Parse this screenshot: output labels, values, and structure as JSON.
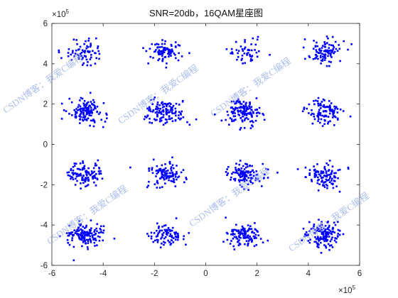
{
  "chart_data": {
    "type": "scatter",
    "title": "SNR=20db，16QAM星座图",
    "xlabel": "",
    "ylabel": "",
    "xlim": [
      -600000,
      600000
    ],
    "ylim": [
      -600000,
      600000
    ],
    "x_exponent_label": "×10",
    "y_exponent_label": "×10",
    "exponent": "5",
    "xticks": [
      -6,
      -4,
      -2,
      0,
      2,
      4,
      6
    ],
    "yticks": [
      -6,
      -4,
      -2,
      0,
      2,
      4,
      6
    ],
    "xtick_labels": [
      "-6",
      "-4",
      "-2",
      "0",
      "2",
      "4",
      "6"
    ],
    "ytick_labels": [
      "-6",
      "-4",
      "-2",
      "0",
      "2",
      "4",
      "6"
    ],
    "grid": false,
    "marker_color": "#0000ff",
    "series": [
      {
        "cluster_centers": [
          [
            -470000,
            460000
          ],
          [
            -160000,
            460000
          ],
          [
            150000,
            460000
          ],
          [
            460000,
            460000
          ],
          [
            -470000,
            160000
          ],
          [
            -160000,
            160000
          ],
          [
            150000,
            160000
          ],
          [
            460000,
            160000
          ],
          [
            -470000,
            -150000
          ],
          [
            -160000,
            -150000
          ],
          [
            150000,
            -150000
          ],
          [
            460000,
            -150000
          ],
          [
            -470000,
            -450000
          ],
          [
            -160000,
            -450000
          ],
          [
            150000,
            -450000
          ],
          [
            460000,
            -450000
          ]
        ],
        "approx_spread": 35000
      }
    ],
    "watermarks": [
      "CSDN博客：我爱C编程",
      "CSDN博客：我爱C编程",
      "CSDN博客：我爱C编程",
      "CSDN博客：我爱C编程",
      "CSDN博客：我爱C编程",
      "CSDN博客：我爱C编程"
    ]
  }
}
